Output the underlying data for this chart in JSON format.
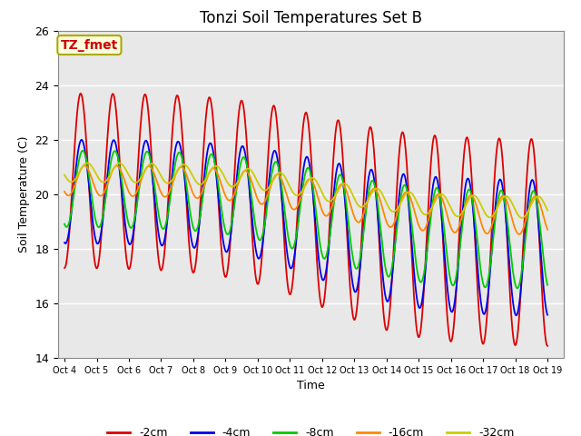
{
  "title": "Tonzi Soil Temperatures Set B",
  "xlabel": "Time",
  "ylabel": "Soil Temperature (C)",
  "ylim": [
    14,
    26
  ],
  "annotation": "TZ_fmet",
  "annotation_color": "#cc0000",
  "annotation_bg": "#ffffdd",
  "annotation_border": "#aaaa00",
  "bg_color": "#e8e8e8",
  "series": [
    {
      "label": "-2cm",
      "color": "#dd0000",
      "segments": [
        {
          "t0": 0,
          "t1": 8,
          "mean": 20.5,
          "amp": 3.2,
          "phase": 0.0
        },
        {
          "t0": 8,
          "t1": 15,
          "mean": 18.2,
          "amp": 3.8,
          "phase": 0.0
        }
      ]
    },
    {
      "label": "-4cm",
      "color": "#0000ee",
      "segments": [
        {
          "t0": 0,
          "t1": 8,
          "mean": 20.1,
          "amp": 1.9,
          "phase": 0.18
        },
        {
          "t0": 8,
          "t1": 15,
          "mean": 18.0,
          "amp": 2.5,
          "phase": 0.18
        }
      ]
    },
    {
      "label": "-8cm",
      "color": "#00cc00",
      "segments": [
        {
          "t0": 0,
          "t1": 8,
          "mean": 20.2,
          "amp": 1.4,
          "phase": 0.4
        },
        {
          "t0": 8,
          "t1": 15,
          "mean": 18.3,
          "amp": 1.8,
          "phase": 0.4
        }
      ]
    },
    {
      "label": "-16cm",
      "color": "#ff8800",
      "segments": [
        {
          "t0": 0,
          "t1": 8,
          "mean": 20.5,
          "amp": 0.55,
          "phase": 0.75
        },
        {
          "t0": 8,
          "t1": 15,
          "mean": 19.2,
          "amp": 0.7,
          "phase": 0.75
        }
      ]
    },
    {
      "label": "-32cm",
      "color": "#cccc00",
      "segments": [
        {
          "t0": 0,
          "t1": 8,
          "mean": 20.8,
          "amp": 0.35,
          "phase": 1.3
        },
        {
          "t0": 8,
          "t1": 15,
          "mean": 19.5,
          "amp": 0.4,
          "phase": 1.3
        }
      ]
    }
  ],
  "xtick_positions": [
    0,
    1,
    2,
    3,
    4,
    5,
    6,
    7,
    8,
    9,
    10,
    11,
    12,
    13,
    14,
    15
  ],
  "xtick_labels": [
    "Oct 4",
    "Oct 5",
    "Oct 6",
    "Oct 7",
    "Oct 8",
    "Oct 9",
    "Oct 10",
    "Oct 11",
    "Oct 12",
    "Oct 13",
    "Oct 14",
    "Oct 15",
    "Oct 16",
    "Oct 17",
    "Oct 18",
    "Oct 19"
  ],
  "legend_fontsize": 9,
  "title_fontsize": 12
}
